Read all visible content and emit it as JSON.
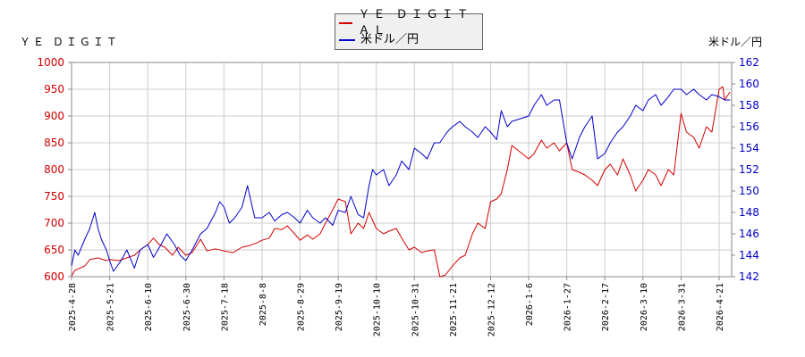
{
  "chart_data": {
    "type": "line",
    "left_axis_label": "ＹＥ ＤＩＧＩＴ",
    "right_axis_label": "米ドル／円",
    "grid": true,
    "legend_position": "top-center",
    "x_ticks": [
      "2025-4-28",
      "2025-5-21",
      "2025-6-10",
      "2025-6-30",
      "2025-7-18",
      "2025-8-8",
      "2025-8-29",
      "2025-9-19",
      "2025-10-10",
      "2025-10-31",
      "2025-11-21",
      "2025-12-12",
      "2026-1-6",
      "2026-1-27",
      "2026-2-17",
      "2026-3-10",
      "2026-3-31",
      "2026-4-21"
    ],
    "y_left": {
      "min": 600,
      "max": 1000,
      "ticks": [
        600,
        650,
        700,
        750,
        800,
        850,
        900,
        950,
        1000
      ]
    },
    "y_right": {
      "min": 142,
      "max": 162,
      "ticks": [
        142,
        144,
        146,
        148,
        150,
        152,
        154,
        156,
        158,
        160,
        162
      ]
    },
    "series": [
      {
        "name": "ＹＥ ＤＩＧＩＴＡＬ",
        "color": "#d40000",
        "axis": "left",
        "points": [
          [
            "2025-4-28",
            601
          ],
          [
            "2025-4-30",
            612
          ],
          [
            "2025-5-6",
            620
          ],
          [
            "2025-5-9",
            632
          ],
          [
            "2025-5-14",
            635
          ],
          [
            "2025-5-19",
            630
          ],
          [
            "2025-5-21",
            632
          ],
          [
            "2025-5-26",
            630
          ],
          [
            "2025-5-29",
            634
          ],
          [
            "2025-6-3",
            640
          ],
          [
            "2025-6-6",
            650
          ],
          [
            "2025-6-10",
            660
          ],
          [
            "2025-6-13",
            672
          ],
          [
            "2025-6-16",
            660
          ],
          [
            "2025-6-19",
            655
          ],
          [
            "2025-6-23",
            640
          ],
          [
            "2025-6-26",
            655
          ],
          [
            "2025-6-30",
            640
          ],
          [
            "2025-7-3",
            645
          ],
          [
            "2025-7-7",
            670
          ],
          [
            "2025-7-10",
            648
          ],
          [
            "2025-7-14",
            652
          ],
          [
            "2025-7-18",
            648
          ],
          [
            "2025-7-23",
            645
          ],
          [
            "2025-7-28",
            655
          ],
          [
            "2025-8-1",
            658
          ],
          [
            "2025-8-5",
            663
          ],
          [
            "2025-8-8",
            668
          ],
          [
            "2025-8-12",
            672
          ],
          [
            "2025-8-15",
            690
          ],
          [
            "2025-8-19",
            688
          ],
          [
            "2025-8-22",
            695
          ],
          [
            "2025-8-26",
            680
          ],
          [
            "2025-8-29",
            668
          ],
          [
            "2025-9-2",
            678
          ],
          [
            "2025-9-5",
            670
          ],
          [
            "2025-9-9",
            680
          ],
          [
            "2025-9-12",
            700
          ],
          [
            "2025-9-16",
            725
          ],
          [
            "2025-9-19",
            745
          ],
          [
            "2025-9-23",
            740
          ],
          [
            "2025-9-26",
            680
          ],
          [
            "2025-9-30",
            700
          ],
          [
            "2025-10-3",
            690
          ],
          [
            "2025-10-6",
            720
          ],
          [
            "2025-10-10",
            690
          ],
          [
            "2025-10-14",
            680
          ],
          [
            "2025-10-17",
            685
          ],
          [
            "2025-10-21",
            690
          ],
          [
            "2025-10-24",
            672
          ],
          [
            "2025-10-28",
            650
          ],
          [
            "2025-10-31",
            655
          ],
          [
            "2025-11-4",
            645
          ],
          [
            "2025-11-7",
            648
          ],
          [
            "2025-11-11",
            650
          ],
          [
            "2025-11-14",
            600
          ],
          [
            "2025-11-17",
            603
          ],
          [
            "2025-11-21",
            620
          ],
          [
            "2025-11-25",
            635
          ],
          [
            "2025-11-28",
            640
          ],
          [
            "2025-12-2",
            680
          ],
          [
            "2025-12-5",
            700
          ],
          [
            "2025-12-9",
            690
          ],
          [
            "2025-12-12",
            740
          ],
          [
            "2025-12-16",
            745
          ],
          [
            "2025-12-19",
            755
          ],
          [
            "2025-12-23",
            800
          ],
          [
            "2025-12-26",
            845
          ],
          [
            "2026-1-6",
            820
          ],
          [
            "2026-1-9",
            830
          ],
          [
            "2026-1-13",
            855
          ],
          [
            "2026-1-16",
            840
          ],
          [
            "2026-1-20",
            850
          ],
          [
            "2026-1-23",
            835
          ],
          [
            "2026-1-27",
            850
          ],
          [
            "2026-1-30",
            800
          ],
          [
            "2026-2-3",
            795
          ],
          [
            "2026-2-6",
            790
          ],
          [
            "2026-2-10",
            780
          ],
          [
            "2026-2-13",
            770
          ],
          [
            "2026-2-17",
            800
          ],
          [
            "2026-2-20",
            810
          ],
          [
            "2026-2-24",
            790
          ],
          [
            "2026-2-27",
            820
          ],
          [
            "2026-3-3",
            790
          ],
          [
            "2026-3-6",
            760
          ],
          [
            "2026-3-10",
            780
          ],
          [
            "2026-3-13",
            800
          ],
          [
            "2026-3-17",
            790
          ],
          [
            "2026-3-20",
            770
          ],
          [
            "2026-3-24",
            800
          ],
          [
            "2026-3-27",
            790
          ],
          [
            "2026-3-31",
            905
          ],
          [
            "2026-4-3",
            870
          ],
          [
            "2026-4-7",
            860
          ],
          [
            "2026-4-10",
            840
          ],
          [
            "2026-4-14",
            880
          ],
          [
            "2026-4-17",
            870
          ],
          [
            "2026-4-21",
            950
          ],
          [
            "2026-4-23",
            955
          ],
          [
            "2026-4-24",
            930
          ],
          [
            "2026-4-27",
            945
          ]
        ]
      },
      {
        "name": "米ドル／円",
        "color": "#0000cc",
        "axis": "right",
        "points": [
          [
            "2025-4-28",
            143.0
          ],
          [
            "2025-4-30",
            144.5
          ],
          [
            "2025-5-2",
            144.0
          ],
          [
            "2025-5-6",
            145.5
          ],
          [
            "2025-5-9",
            146.5
          ],
          [
            "2025-5-12",
            148.0
          ],
          [
            "2025-5-14",
            146.5
          ],
          [
            "2025-5-16",
            145.5
          ],
          [
            "2025-5-19",
            144.5
          ],
          [
            "2025-5-21",
            143.5
          ],
          [
            "2025-5-23",
            142.5
          ],
          [
            "2025-5-27",
            143.5
          ],
          [
            "2025-5-30",
            144.5
          ],
          [
            "2025-6-3",
            142.8
          ],
          [
            "2025-6-6",
            144.5
          ],
          [
            "2025-6-10",
            145.0
          ],
          [
            "2025-6-13",
            143.8
          ],
          [
            "2025-6-17",
            145.0
          ],
          [
            "2025-6-20",
            146.0
          ],
          [
            "2025-6-24",
            145.0
          ],
          [
            "2025-6-27",
            144.0
          ],
          [
            "2025-6-30",
            143.5
          ],
          [
            "2025-7-3",
            144.5
          ],
          [
            "2025-7-7",
            146.0
          ],
          [
            "2025-7-10",
            146.5
          ],
          [
            "2025-7-14",
            148.0
          ],
          [
            "2025-7-16",
            149.0
          ],
          [
            "2025-7-18",
            148.5
          ],
          [
            "2025-7-21",
            147.0
          ],
          [
            "2025-7-24",
            147.5
          ],
          [
            "2025-7-28",
            148.5
          ],
          [
            "2025-7-31",
            150.5
          ],
          [
            "2025-8-4",
            147.5
          ],
          [
            "2025-8-8",
            147.5
          ],
          [
            "2025-8-12",
            148.0
          ],
          [
            "2025-8-15",
            147.2
          ],
          [
            "2025-8-19",
            147.8
          ],
          [
            "2025-8-22",
            148.0
          ],
          [
            "2025-8-26",
            147.5
          ],
          [
            "2025-8-29",
            147.0
          ],
          [
            "2025-9-2",
            148.2
          ],
          [
            "2025-9-5",
            147.5
          ],
          [
            "2025-9-9",
            147.0
          ],
          [
            "2025-9-12",
            147.5
          ],
          [
            "2025-9-16",
            146.8
          ],
          [
            "2025-9-19",
            148.2
          ],
          [
            "2025-9-23",
            148.0
          ],
          [
            "2025-9-26",
            149.5
          ],
          [
            "2025-9-30",
            147.8
          ],
          [
            "2025-10-3",
            147.5
          ],
          [
            "2025-10-6",
            150.5
          ],
          [
            "2025-10-8",
            152.0
          ],
          [
            "2025-10-10",
            151.5
          ],
          [
            "2025-10-14",
            152.0
          ],
          [
            "2025-10-17",
            150.5
          ],
          [
            "2025-10-21",
            151.5
          ],
          [
            "2025-10-24",
            152.8
          ],
          [
            "2025-10-28",
            152.0
          ],
          [
            "2025-10-31",
            154.0
          ],
          [
            "2025-11-4",
            153.5
          ],
          [
            "2025-11-7",
            153.0
          ],
          [
            "2025-11-11",
            154.5
          ],
          [
            "2025-11-14",
            154.5
          ],
          [
            "2025-11-18",
            155.5
          ],
          [
            "2025-11-21",
            156.0
          ],
          [
            "2025-11-25",
            156.5
          ],
          [
            "2025-11-28",
            156.0
          ],
          [
            "2025-12-2",
            155.5
          ],
          [
            "2025-12-5",
            155.0
          ],
          [
            "2025-12-9",
            156.0
          ],
          [
            "2025-12-12",
            155.5
          ],
          [
            "2025-12-16",
            154.8
          ],
          [
            "2025-12-19",
            157.5
          ],
          [
            "2025-12-23",
            156.0
          ],
          [
            "2025-12-26",
            156.5
          ],
          [
            "2026-1-6",
            157.0
          ],
          [
            "2026-1-9",
            158.0
          ],
          [
            "2026-1-13",
            159.0
          ],
          [
            "2026-1-16",
            158.0
          ],
          [
            "2026-1-20",
            158.5
          ],
          [
            "2026-1-23",
            158.5
          ],
          [
            "2026-1-27",
            154.5
          ],
          [
            "2026-1-30",
            153.0
          ],
          [
            "2026-2-3",
            155.0
          ],
          [
            "2026-2-6",
            156.0
          ],
          [
            "2026-2-10",
            157.0
          ],
          [
            "2026-2-13",
            153.0
          ],
          [
            "2026-2-17",
            153.5
          ],
          [
            "2026-2-20",
            154.5
          ],
          [
            "2026-2-24",
            155.5
          ],
          [
            "2026-2-27",
            156.0
          ],
          [
            "2026-3-3",
            157.0
          ],
          [
            "2026-3-6",
            158.0
          ],
          [
            "2026-3-10",
            157.5
          ],
          [
            "2026-3-13",
            158.5
          ],
          [
            "2026-3-17",
            159.0
          ],
          [
            "2026-3-20",
            158.0
          ],
          [
            "2026-3-24",
            158.8
          ],
          [
            "2026-3-27",
            159.5
          ],
          [
            "2026-3-31",
            159.5
          ],
          [
            "2026-4-3",
            159.0
          ],
          [
            "2026-4-7",
            159.5
          ],
          [
            "2026-4-10",
            159.0
          ],
          [
            "2026-4-14",
            158.5
          ],
          [
            "2026-4-17",
            159.0
          ],
          [
            "2026-4-21",
            158.8
          ],
          [
            "2026-4-24",
            158.5
          ],
          [
            "2026-4-27",
            158.5
          ]
        ]
      }
    ]
  }
}
